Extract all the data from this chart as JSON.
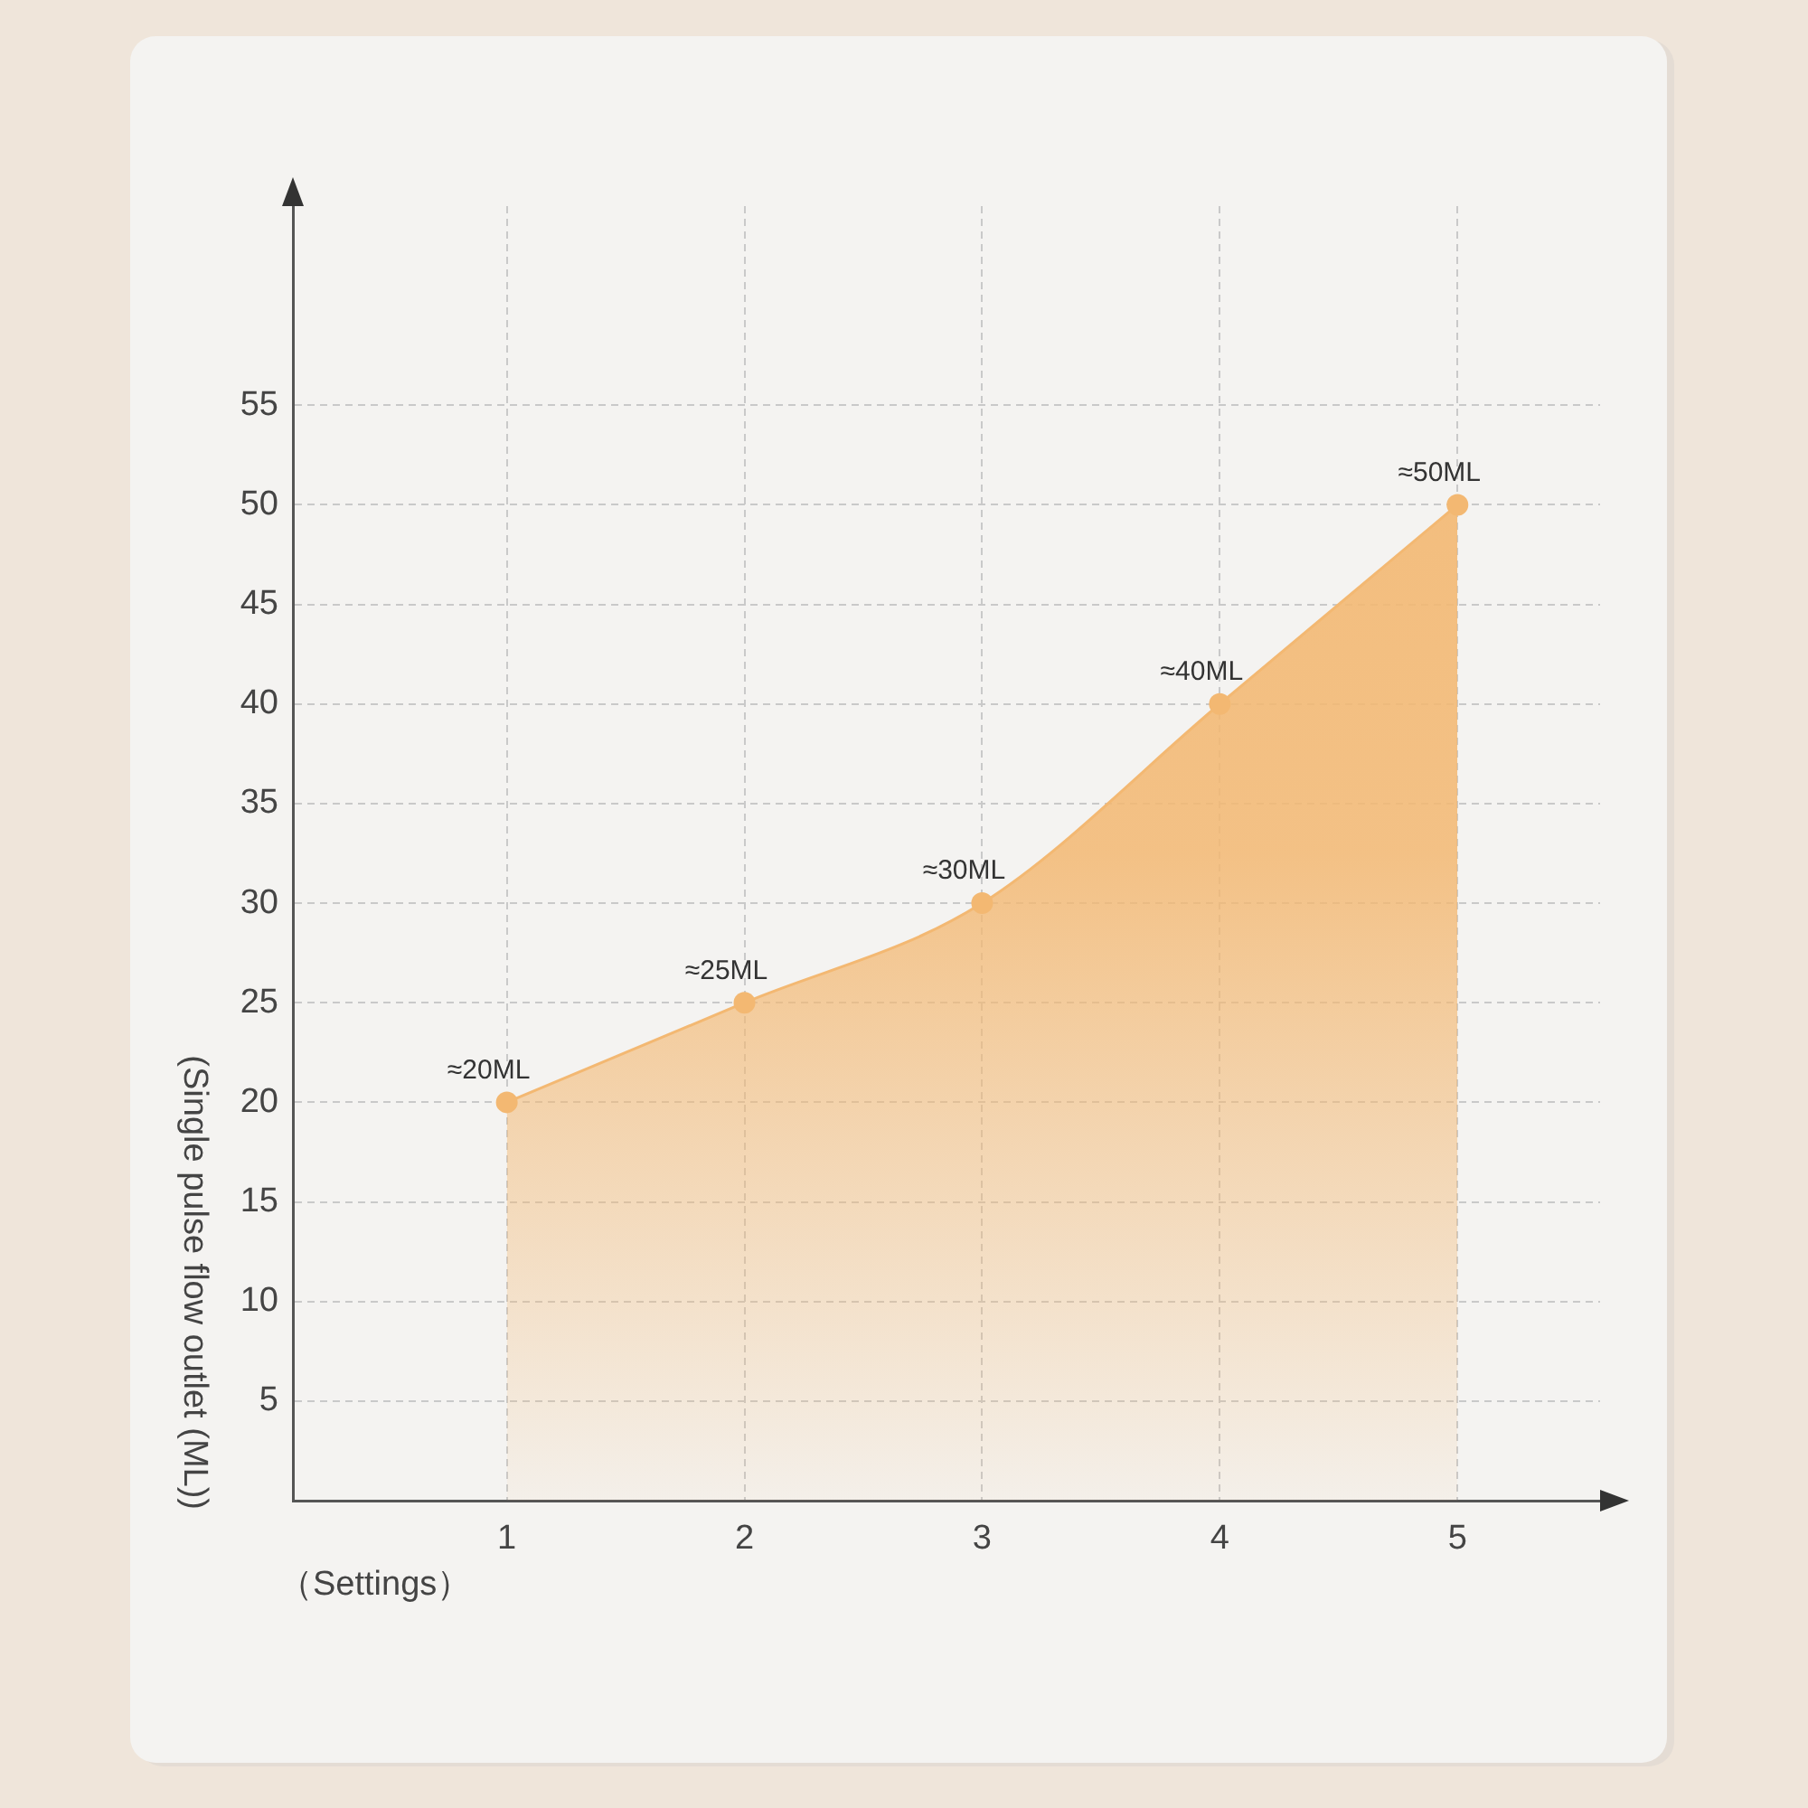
{
  "chart_data": {
    "type": "area",
    "x": [
      1,
      2,
      3,
      4,
      5
    ],
    "values": [
      20,
      25,
      30,
      40,
      50
    ],
    "color": "#f3b872",
    "value_labels": [
      "≈20ML",
      "≈25ML",
      "≈30ML",
      "≈40ML",
      "≈50ML"
    ],
    "xlabel": "（Settings）",
    "ylabel": "(Single pulse flow outlet (ML))",
    "xlim": [
      0.1,
      5.6
    ],
    "xticks": [
      1,
      2,
      3,
      4,
      5
    ],
    "ylim": [
      0,
      65
    ],
    "yticks": [
      5,
      10,
      15,
      20,
      25,
      30,
      35,
      40,
      45,
      50,
      55
    ],
    "grid": true,
    "marker": "circle"
  }
}
